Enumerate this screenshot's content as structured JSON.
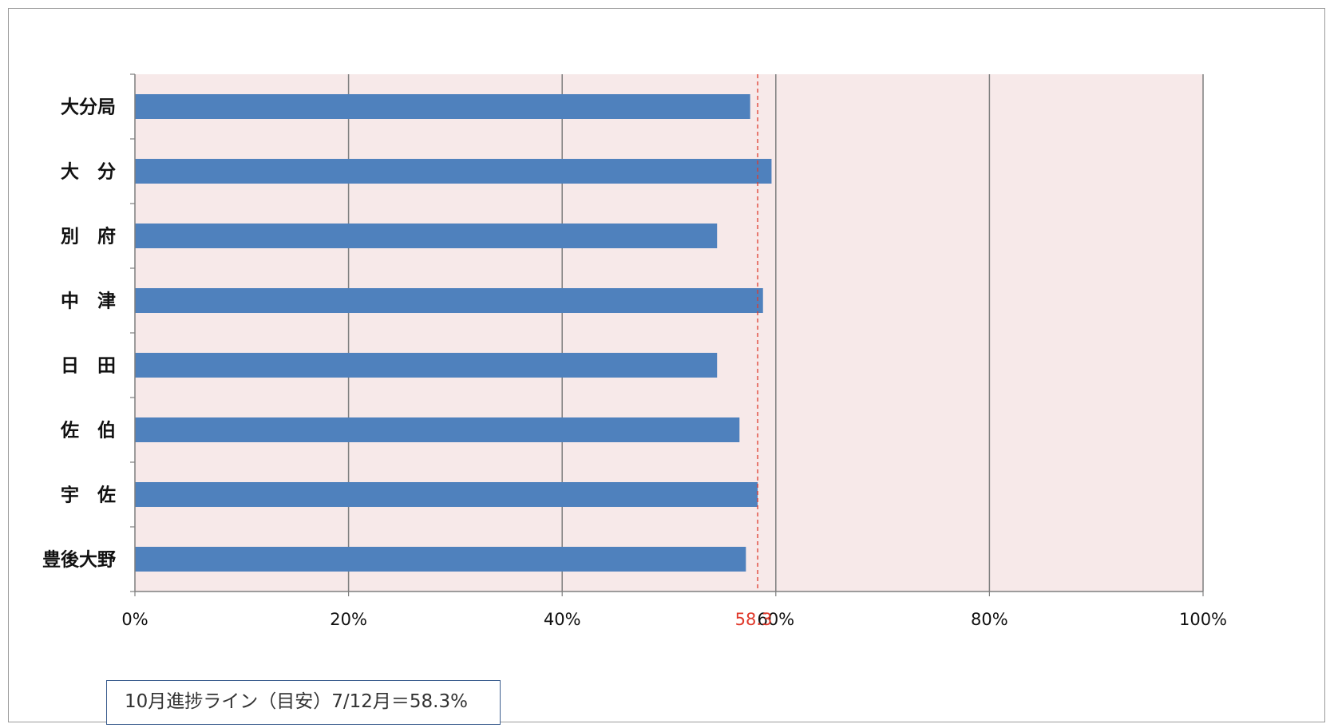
{
  "chart_data": {
    "type": "bar",
    "orientation": "horizontal",
    "categories": [
      "大分局",
      "大　分",
      "別　府",
      "中　津",
      "日　田",
      "佐　伯",
      "宇　佐",
      "豊後大野"
    ],
    "values": [
      57.6,
      59.6,
      54.5,
      58.8,
      54.5,
      56.6,
      58.3,
      57.2
    ],
    "x_ticks": [
      "0%",
      "20%",
      "40%",
      "60%",
      "80%",
      "100%"
    ],
    "xlim": [
      0,
      100
    ],
    "grid": true,
    "reference_line": {
      "value": 58.3,
      "label": "58.3",
      "color": "#e0392b"
    },
    "colors": {
      "bar": "#4f81bd",
      "plot_background": "#f7e9e9",
      "grid": "#7f7f7f"
    }
  },
  "note": "10月進捗ライン（目安）7/12月＝58.3%"
}
